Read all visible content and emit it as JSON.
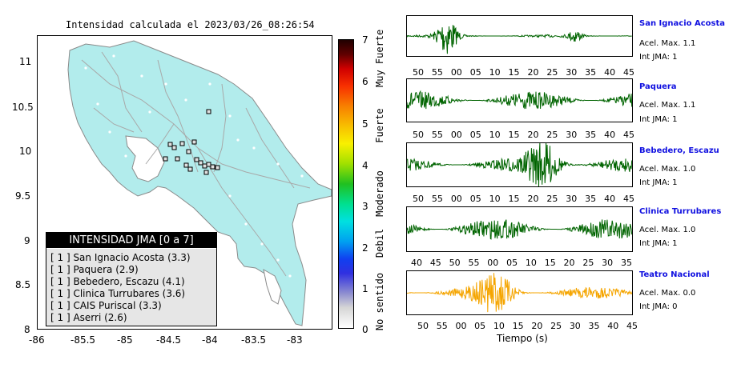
{
  "map": {
    "title": "Intensidad calculada el 2023/03/26_08:26:54",
    "x_ticks": [
      "-86",
      "-85.5",
      "-85",
      "-84.5",
      "-84",
      "-83.5",
      "-83"
    ],
    "y_ticks": [
      "11",
      "10.5",
      "10",
      "9.5",
      "9",
      "8.5",
      "8"
    ],
    "land_color": "#b2ecec",
    "legend": {
      "title": "INTENSIDAD JMA [0 a 7]",
      "items": [
        "[ 1 ]  San Ignacio Acosta (3.3)",
        "[ 1 ]  Paquera (2.9)",
        "[ 1 ]  Bebedero, Escazu (4.1)",
        "[ 1 ]  Clinica Turrubares (3.6)",
        "[ 1 ]  CAIS Puriscal (3.3)",
        "[ 1 ]  Aserri (2.6)"
      ]
    }
  },
  "colorbar": {
    "numbers": [
      "7",
      "6",
      "5",
      "4",
      "3",
      "2",
      "1",
      "0"
    ],
    "labels": [
      "Muy Fuerte",
      "Fuerte",
      "Moderado",
      "Debil",
      "No sentido"
    ]
  },
  "waveforms": {
    "xlabel": "Tiempo (s)",
    "stations": [
      {
        "name": "San Ignacio Acosta",
        "acel": "Acel. Max. 1.1",
        "int": "Int JMA: 1",
        "color": "#006400",
        "ticks": [
          "50",
          "55",
          "00",
          "05",
          "10",
          "15",
          "20",
          "25",
          "30",
          "35",
          "40",
          "45"
        ]
      },
      {
        "name": "Paquera",
        "acel": "Acel. Max. 1.1",
        "int": "Int JMA: 1",
        "color": "#006400",
        "ticks": [
          "50",
          "55",
          "00",
          "05",
          "10",
          "15",
          "20",
          "25",
          "30",
          "35",
          "40",
          "45"
        ]
      },
      {
        "name": "Bebedero, Escazu",
        "acel": "Acel. Max. 1.0",
        "int": "Int JMA: 1",
        "color": "#006400",
        "ticks": [
          "50",
          "55",
          "00",
          "05",
          "10",
          "15",
          "20",
          "25",
          "30",
          "35",
          "40",
          "45"
        ]
      },
      {
        "name": "Clinica Turrubares",
        "acel": "Acel. Max. 1.0",
        "int": "Int JMA: 1",
        "color": "#006400",
        "ticks": [
          "40",
          "45",
          "50",
          "55",
          "00",
          "05",
          "10",
          "15",
          "20",
          "25",
          "30",
          "35"
        ]
      },
      {
        "name": "Teatro Nacional",
        "acel": "Acel. Max. 0.0",
        "int": "Int JMA: 0",
        "color": "#f5a500",
        "ticks": [
          "50",
          "55",
          "00",
          "05",
          "10",
          "15",
          "20",
          "25",
          "30",
          "35",
          "40",
          "45"
        ]
      }
    ]
  }
}
